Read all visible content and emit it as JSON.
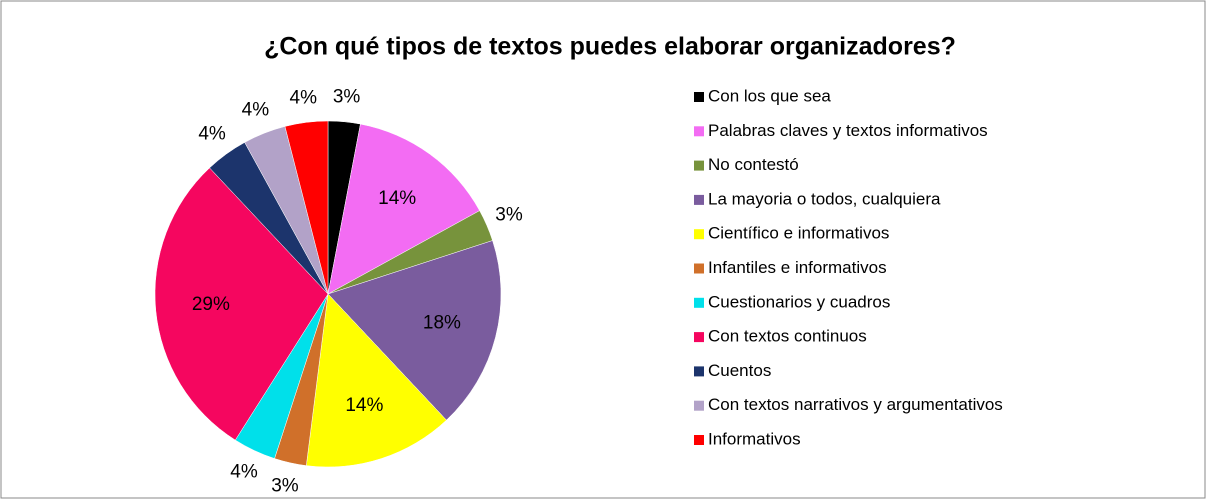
{
  "chart_data": {
    "type": "pie",
    "title": "¿Con qué tipos de textos puedes elaborar organizadores?",
    "categories": [
      "Con los que sea",
      "Palabras claves y textos informativos",
      "No contestó",
      "La mayoria o todos, cualquiera",
      "Científico e informativos",
      "Infantiles e informativos",
      "Cuestionarios y cuadros",
      "Con textos continuos",
      "Cuentos",
      "Con textos narrativos y argumentativos",
      "Informativos"
    ],
    "values": [
      3,
      14,
      3,
      18,
      14,
      3,
      4,
      29,
      4,
      4,
      4
    ],
    "value_labels": [
      "3%",
      "14%",
      "3%",
      "18%",
      "14%",
      "3%",
      "4%",
      "29%",
      "4%",
      "4%",
      "4%"
    ],
    "colors": [
      "#000000",
      "#f36cf3",
      "#77933c",
      "#7a5c9e",
      "#ffff00",
      "#d0702a",
      "#00e0ea",
      "#f5065f",
      "#1c346c",
      "#b2a2c8",
      "#ff0000"
    ],
    "legend": "right"
  }
}
